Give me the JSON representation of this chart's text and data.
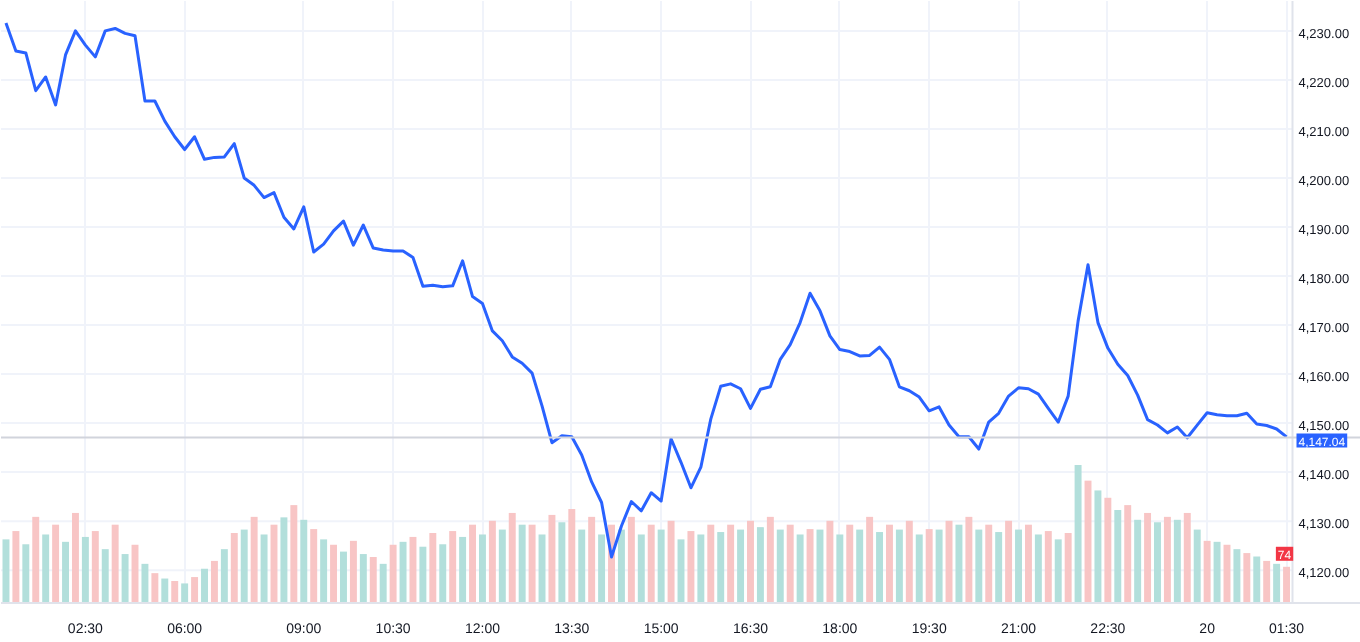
{
  "chart_data": {
    "type": "line",
    "ylim": [
      4113.3,
      4236.1
    ],
    "y2lim": [
      0,
      1230
    ],
    "categories": [
      null,
      null,
      null,
      null,
      null,
      null,
      null,
      null,
      "02:30",
      null,
      null,
      null,
      null,
      null,
      null,
      null,
      null,
      null,
      "06:00",
      null,
      null,
      null,
      null,
      null,
      null,
      null,
      null,
      null,
      null,
      null,
      "09:00",
      null,
      null,
      null,
      null,
      null,
      null,
      null,
      null,
      "10:30",
      null,
      null,
      null,
      null,
      null,
      null,
      null,
      null,
      "12:00",
      null,
      null,
      null,
      null,
      null,
      null,
      null,
      null,
      "13:30",
      null,
      null,
      null,
      null,
      null,
      null,
      null,
      null,
      "15:00",
      null,
      null,
      null,
      null,
      null,
      null,
      null,
      null,
      "16:30",
      null,
      null,
      null,
      null,
      null,
      null,
      null,
      null,
      "18:00",
      null,
      null,
      null,
      null,
      null,
      null,
      null,
      null,
      "19:30",
      null,
      null,
      null,
      null,
      null,
      null,
      null,
      null,
      "21:00",
      null,
      null,
      null,
      null,
      null,
      null,
      null,
      null,
      "22:30",
      null,
      null,
      null,
      null,
      null,
      null,
      null,
      null,
      null,
      "20",
      null,
      null,
      null,
      null,
      null,
      null,
      null,
      "01:30"
    ],
    "yticks": [
      {
        "value": 4120,
        "label": "4,120.00"
      },
      {
        "value": 4130,
        "label": "4,130.00"
      },
      {
        "value": 4140,
        "label": "4,140.00"
      },
      {
        "value": 4150,
        "label": "4,150.00"
      },
      {
        "value": 4160,
        "label": "4,160.00"
      },
      {
        "value": 4170,
        "label": "4,170.00"
      },
      {
        "value": 4180,
        "label": "4,180.00"
      },
      {
        "value": 4190,
        "label": "4,190.00"
      },
      {
        "value": 4200,
        "label": "4,200.00"
      },
      {
        "value": 4210,
        "label": "4,210.00"
      },
      {
        "value": 4220,
        "label": "4,220.00"
      },
      {
        "value": 4230,
        "label": "4,230.00"
      }
    ],
    "grid": true,
    "ref_lines": [
      {
        "axis": "y",
        "value": 4147.04,
        "label": "4,147.04",
        "color": "#d1d4dc"
      }
    ],
    "series": [
      {
        "type": "bar",
        "axis": "y2",
        "values": [
          130,
          147,
          120,
          176,
          140,
          160,
          125,
          184,
          135,
          147,
          110,
          160,
          100,
          119,
          80,
          61,
          50,
          45,
          40,
          53,
          70,
          86,
          110,
          143,
          150,
          176,
          140,
          160,
          175,
          200,
          170,
          151,
          130,
          119,
          105,
          127,
          100,
          94,
          80,
          119,
          125,
          135,
          115,
          143,
          120,
          147,
          135,
          160,
          140,
          168,
          150,
          184,
          160,
          160,
          140,
          180,
          165,
          192,
          150,
          176,
          140,
          160,
          150,
          176,
          140,
          160,
          150,
          168,
          130,
          147,
          140,
          160,
          145,
          160,
          150,
          168,
          155,
          176,
          150,
          160,
          140,
          151,
          150,
          168,
          140,
          160,
          150,
          176,
          145,
          160,
          150,
          168,
          140,
          151,
          150,
          168,
          160,
          176,
          150,
          160,
          145,
          168,
          150,
          160,
          140,
          147,
          130,
          143,
          282,
          250,
          230,
          215,
          190,
          200,
          170,
          184,
          165,
          176,
          170,
          184,
          150,
          127,
          125,
          119,
          110,
          102,
          95,
          86,
          80,
          74
        ],
        "colors": [
          "#b2dfdb",
          "#f8c5c5",
          "#b2dfdb",
          "#f8c5c5",
          "#b2dfdb",
          "#f8c5c5",
          "#b2dfdb",
          "#f8c5c5",
          "#b2dfdb",
          "#f8c5c5",
          "#b2dfdb",
          "#f8c5c5",
          "#b2dfdb",
          "#f8c5c5",
          "#b2dfdb",
          "#f8c5c5",
          "#b2dfdb",
          "#f8c5c5",
          "#b2dfdb",
          "#f8c5c5",
          "#b2dfdb",
          "#f8c5c5",
          "#b2dfdb",
          "#f8c5c5",
          "#b2dfdb",
          "#f8c5c5",
          "#b2dfdb",
          "#f8c5c5",
          "#b2dfdb",
          "#f8c5c5",
          "#b2dfdb",
          "#f8c5c5",
          "#b2dfdb",
          "#f8c5c5",
          "#b2dfdb",
          "#f8c5c5",
          "#b2dfdb",
          "#f8c5c5",
          "#b2dfdb",
          "#f8c5c5",
          "#b2dfdb",
          "#f8c5c5",
          "#b2dfdb",
          "#f8c5c5",
          "#b2dfdb",
          "#f8c5c5",
          "#b2dfdb",
          "#f8c5c5",
          "#b2dfdb",
          "#f8c5c5",
          "#b2dfdb",
          "#f8c5c5",
          "#b2dfdb",
          "#f8c5c5",
          "#b2dfdb",
          "#f8c5c5",
          "#b2dfdb",
          "#f8c5c5",
          "#b2dfdb",
          "#f8c5c5",
          "#b2dfdb",
          "#f8c5c5",
          "#b2dfdb",
          "#f8c5c5",
          "#b2dfdb",
          "#f8c5c5",
          "#b2dfdb",
          "#f8c5c5",
          "#b2dfdb",
          "#f8c5c5",
          "#b2dfdb",
          "#f8c5c5",
          "#b2dfdb",
          "#f8c5c5",
          "#b2dfdb",
          "#f8c5c5",
          "#b2dfdb",
          "#f8c5c5",
          "#b2dfdb",
          "#f8c5c5",
          "#b2dfdb",
          "#f8c5c5",
          "#b2dfdb",
          "#f8c5c5",
          "#b2dfdb",
          "#f8c5c5",
          "#b2dfdb",
          "#f8c5c5",
          "#b2dfdb",
          "#f8c5c5",
          "#b2dfdb",
          "#f8c5c5",
          "#b2dfdb",
          "#f8c5c5",
          "#b2dfdb",
          "#f8c5c5",
          "#b2dfdb",
          "#f8c5c5",
          "#b2dfdb",
          "#f8c5c5",
          "#b2dfdb",
          "#f8c5c5",
          "#b2dfdb",
          "#f8c5c5",
          "#b2dfdb",
          "#f8c5c5",
          "#b2dfdb",
          "#f8c5c5",
          "#b2dfdb",
          "#f8c5c5",
          "#b2dfdb",
          "#f8c5c5",
          "#b2dfdb",
          "#f8c5c5",
          "#b2dfdb",
          "#f8c5c5",
          "#b2dfdb",
          "#f8c5c5",
          "#b2dfdb",
          "#f8c5c5",
          "#b2dfdb",
          "#f8c5c5",
          "#b2dfdb",
          "#f8c5c5",
          "#b2dfdb",
          "#f8c5c5",
          "#b2dfdb",
          "#f8c5c5",
          "#b2dfdb",
          "#f8c5c5"
        ],
        "value_labels": [
          null,
          null,
          null,
          null,
          null,
          null,
          null,
          null,
          null,
          null,
          null,
          null,
          null,
          null,
          null,
          null,
          null,
          null,
          null,
          null,
          null,
          null,
          null,
          null,
          null,
          null,
          null,
          null,
          null,
          null,
          null,
          null,
          null,
          null,
          null,
          null,
          null,
          null,
          null,
          null,
          null,
          null,
          null,
          null,
          null,
          null,
          null,
          null,
          null,
          null,
          null,
          null,
          null,
          null,
          null,
          null,
          null,
          null,
          null,
          null,
          null,
          null,
          null,
          null,
          null,
          null,
          null,
          null,
          null,
          null,
          null,
          null,
          null,
          null,
          null,
          null,
          null,
          null,
          null,
          null,
          null,
          null,
          null,
          null,
          null,
          null,
          null,
          null,
          null,
          null,
          null,
          null,
          null,
          null,
          null,
          null,
          null,
          null,
          null,
          null,
          null,
          null,
          null,
          null,
          null,
          null,
          null,
          null,
          null,
          null,
          null,
          null,
          null,
          null,
          null,
          null,
          null,
          null,
          null,
          null,
          null,
          null,
          null,
          null,
          null,
          null,
          null,
          null,
          null,
          "74"
        ]
      },
      {
        "color": "#2962ff",
        "values": [
          4231.6,
          4225.9,
          4225.5,
          4217.8,
          4220.6,
          4214.9,
          4225.1,
          4230.0,
          4227.1,
          4224.7,
          4230.0,
          4230.5,
          4229.5,
          4229.0,
          4215.7,
          4215.7,
          4211.6,
          4208.4,
          4205.8,
          4208.4,
          4203.8,
          4204.2,
          4204.3,
          4207.0,
          4200.0,
          4198.5,
          4196.0,
          4197.0,
          4192.0,
          4189.6,
          4194.1,
          4184.9,
          4186.5,
          4189.2,
          4191.2,
          4186.3,
          4190.4,
          4185.7,
          4185.3,
          4185.1,
          4185.1,
          4183.8,
          4177.9,
          4178.1,
          4177.8,
          4178.0,
          4183.1,
          4175.8,
          4174.4,
          4168.8,
          4166.8,
          4163.5,
          4162.2,
          4160.2,
          4153.5,
          4146.0,
          4147.4,
          4147.2,
          4143.5,
          4138.0,
          4133.8,
          4122.7,
          4129.0,
          4134.0,
          4132.1,
          4135.8,
          4134.1,
          4146.8,
          4142.0,
          4136.8,
          4141.0,
          4150.8,
          4157.5,
          4158.0,
          4157.0,
          4153.0,
          4156.9,
          4157.4,
          4163.0,
          4166.0,
          4170.5,
          4176.5,
          4172.9,
          4167.8,
          4165.0,
          4164.6,
          4163.7,
          4163.8,
          4165.5,
          4163.0,
          4157.4,
          4156.6,
          4155.3,
          4152.5,
          4153.3,
          4149.6,
          4147.2,
          4147.2,
          4144.7,
          4150.2,
          4152.0,
          4155.5,
          4157.2,
          4157.0,
          4155.9,
          4153.0,
          4150.2,
          4155.5,
          4170.8,
          4182.3,
          4170.5,
          4165.3,
          4162.0,
          4159.7,
          4155.7,
          4150.7,
          4149.6,
          4148.0,
          4149.2,
          4147.0,
          4149.6,
          4152.1,
          4151.7,
          4151.5,
          4151.5,
          4152.0,
          4149.8,
          4149.5,
          4148.8,
          4147.2
        ]
      }
    ]
  }
}
